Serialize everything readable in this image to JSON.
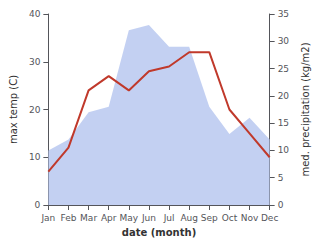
{
  "chart_data": {
    "type": "line",
    "categories": [
      "Jan",
      "Feb",
      "Mar",
      "Apr",
      "May",
      "Jun",
      "Jul",
      "Aug",
      "Sep",
      "Oct",
      "Nov",
      "Dec"
    ],
    "series": [
      {
        "type": "area",
        "axis": "y2",
        "color": "#b8c8f0",
        "values": [
          10,
          12,
          17,
          18,
          32,
          33,
          29,
          29,
          18,
          13,
          16,
          12
        ]
      },
      {
        "type": "line",
        "color": "#c0392b",
        "values": [
          7,
          12,
          24,
          27,
          24,
          28,
          29,
          32,
          32,
          20,
          15,
          10
        ]
      }
    ],
    "xlabel": "date (month)",
    "ylabel": "max temp (C)",
    "y2label": "med. precipitation (kg/m2)",
    "ylim": [
      0,
      40
    ],
    "yticks": [
      0,
      10,
      20,
      30,
      40
    ],
    "y2lim": [
      0,
      35
    ],
    "y2ticks": [
      0,
      5,
      10,
      15,
      20,
      25,
      30,
      35
    ],
    "grid": false
  }
}
